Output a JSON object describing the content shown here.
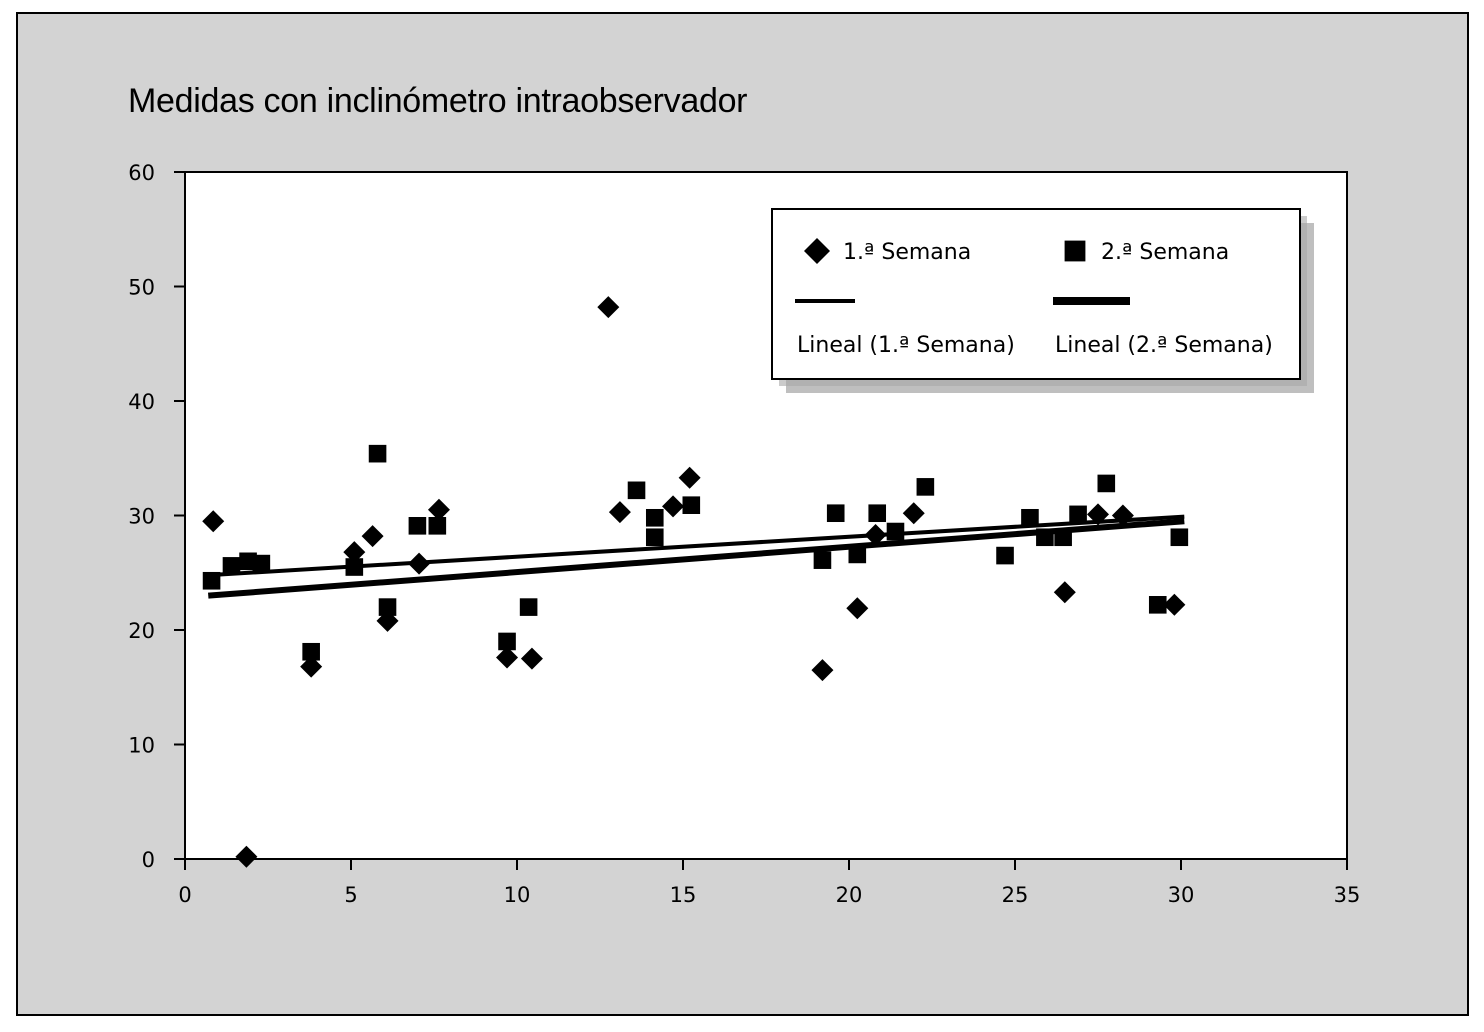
{
  "chart_data": {
    "type": "scatter",
    "title": "Medidas con inclinómetro intraobservador",
    "xlabel": "",
    "ylabel": "",
    "xlim": [
      0,
      35
    ],
    "ylim": [
      0,
      60
    ],
    "x_ticks": [
      0,
      5,
      10,
      15,
      20,
      25,
      30,
      35
    ],
    "y_ticks": [
      0,
      10,
      20,
      30,
      40,
      50,
      60
    ],
    "grid": false,
    "legend_position": "top-right",
    "series": [
      {
        "name": "1.ª Semana",
        "marker": "diamond",
        "points": [
          [
            0.85,
            29.5
          ],
          [
            1.85,
            0.2
          ],
          [
            3.8,
            16.8
          ],
          [
            5.1,
            26.8
          ],
          [
            5.65,
            28.2
          ],
          [
            6.1,
            20.8
          ],
          [
            7.05,
            25.8
          ],
          [
            7.65,
            30.5
          ],
          [
            9.7,
            17.6
          ],
          [
            10.45,
            17.5
          ],
          [
            12.75,
            48.2
          ],
          [
            13.1,
            30.3
          ],
          [
            14.7,
            30.8
          ],
          [
            15.2,
            33.3
          ],
          [
            19.2,
            16.5
          ],
          [
            20.25,
            21.9
          ],
          [
            20.8,
            28.3
          ],
          [
            21.95,
            30.2
          ],
          [
            26.5,
            23.3
          ],
          [
            27.5,
            30.1
          ],
          [
            28.25,
            30.0
          ],
          [
            29.8,
            22.2
          ]
        ]
      },
      {
        "name": "2.ª Semana",
        "marker": "square",
        "points": [
          [
            0.8,
            24.3
          ],
          [
            1.4,
            25.6
          ],
          [
            1.9,
            26.0
          ],
          [
            2.3,
            25.8
          ],
          [
            3.8,
            18.1
          ],
          [
            5.1,
            25.5
          ],
          [
            5.8,
            35.4
          ],
          [
            6.1,
            22.0
          ],
          [
            7.0,
            29.1
          ],
          [
            7.6,
            29.1
          ],
          [
            9.7,
            19.0
          ],
          [
            10.35,
            22.0
          ],
          [
            13.6,
            32.2
          ],
          [
            14.15,
            29.8
          ],
          [
            14.15,
            28.1
          ],
          [
            15.25,
            30.9
          ],
          [
            19.2,
            26.1
          ],
          [
            19.6,
            30.2
          ],
          [
            20.25,
            26.6
          ],
          [
            20.85,
            30.2
          ],
          [
            21.4,
            28.6
          ],
          [
            22.3,
            32.5
          ],
          [
            24.7,
            26.5
          ],
          [
            25.45,
            29.8
          ],
          [
            25.9,
            28.1
          ],
          [
            26.45,
            28.1
          ],
          [
            26.9,
            30.1
          ],
          [
            27.75,
            32.8
          ],
          [
            29.3,
            22.2
          ],
          [
            29.95,
            28.1
          ]
        ]
      }
    ],
    "trendlines": [
      {
        "name": "Lineal (1.ª Semana)",
        "x": [
          0.8,
          30.1
        ],
        "y": [
          24.8,
          29.9
        ],
        "width": "thin"
      },
      {
        "name": "Lineal (2.ª Semana)",
        "x": [
          0.7,
          30.1
        ],
        "y": [
          23.0,
          29.5
        ],
        "width": "thick"
      }
    ],
    "colors": {
      "background": "#d3d3d3",
      "plot_area": "#ffffff",
      "marks": "#000000"
    }
  }
}
